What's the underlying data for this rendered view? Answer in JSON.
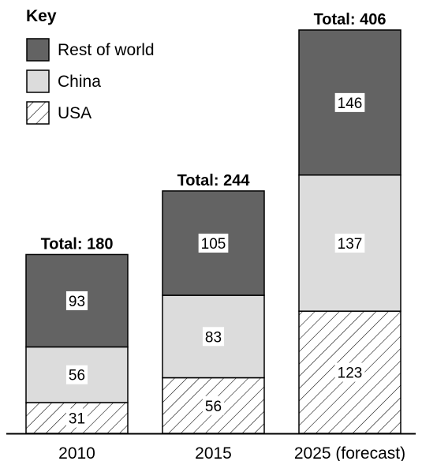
{
  "chart_data": {
    "type": "bar",
    "stacked": true,
    "categories": [
      "2010",
      "2015",
      "2025 (forecast)"
    ],
    "series": [
      {
        "name": "USA",
        "values": [
          31,
          56,
          123
        ],
        "pattern": "hatch",
        "fill": "#ffffff"
      },
      {
        "name": "China",
        "values": [
          56,
          83,
          137
        ],
        "pattern": "solid",
        "fill": "#dcdcdc"
      },
      {
        "name": "Rest of world",
        "values": [
          93,
          105,
          146
        ],
        "pattern": "solid",
        "fill": "#636363"
      }
    ],
    "totals": [
      180,
      244,
      406
    ],
    "total_prefix": "Total: ",
    "legend": {
      "title": "Key",
      "placement": "top-left",
      "entries": [
        "Rest of world",
        "China",
        "USA"
      ]
    },
    "xlabel": "",
    "ylabel": "",
    "ylim": [
      0,
      406
    ],
    "grid": false,
    "colors": {
      "outline": "#000000",
      "text": "#000000",
      "label_box": "#ffffff"
    }
  }
}
